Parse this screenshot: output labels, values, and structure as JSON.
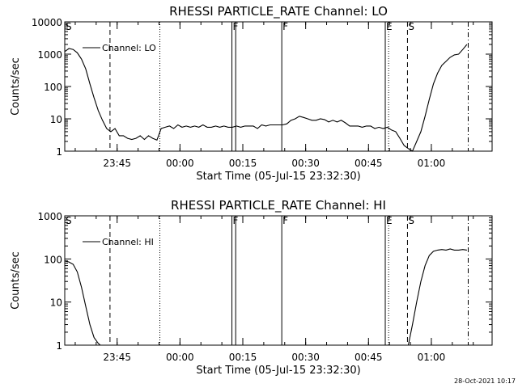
{
  "footer_timestamp": "28-Oct-2021 10:17",
  "chart_data": [
    {
      "type": "line",
      "title": "RHESSI PARTICLE_RATE Channel: LO",
      "xlabel": "Start Time (05-Jul-15 23:32:30)",
      "ylabel": "Counts/sec",
      "yscale": "log",
      "ylim": [
        1,
        10000
      ],
      "y_tick_labels": [
        "1",
        "10",
        "100",
        "1000",
        "10000"
      ],
      "xlim_minutes_after_start": [
        0,
        102
      ],
      "x_ticks": [
        {
          "label": "23:45",
          "t": 12.5
        },
        {
          "label": "00:00",
          "t": 27.5
        },
        {
          "label": "00:15",
          "t": 42.5
        },
        {
          "label": "00:30",
          "t": 57.5
        },
        {
          "label": "00:45",
          "t": 72.5
        },
        {
          "label": "01:00",
          "t": 87.5
        }
      ],
      "legend": {
        "label": "Channel: LO",
        "placement": "top-left"
      },
      "grid": false,
      "series": [
        {
          "name": "Channel: LO",
          "t": [
            0,
            1,
            2,
            3,
            4,
            5,
            6,
            7,
            8,
            9,
            10,
            11,
            12,
            13,
            14,
            15,
            16,
            17,
            18,
            19,
            20,
            21,
            22,
            23,
            24,
            25,
            26,
            27,
            28,
            29,
            30,
            31,
            32,
            33,
            34,
            35,
            36,
            37,
            38,
            39,
            40,
            41,
            42,
            43,
            44,
            45,
            46,
            47,
            48,
            49,
            50,
            51,
            52,
            53,
            54,
            55,
            56,
            57,
            58,
            59,
            60,
            61,
            62,
            63,
            64,
            65,
            66,
            67,
            68,
            69,
            70,
            71,
            72,
            73,
            74,
            75,
            76,
            77,
            78,
            79,
            80,
            81,
            82,
            83,
            84,
            85,
            86,
            87,
            88,
            89,
            90,
            91,
            92,
            93,
            94,
            95,
            96
          ],
          "y": [
            1200,
            1500,
            1400,
            1100,
            700,
            350,
            120,
            45,
            18,
            9,
            5,
            4,
            5,
            3,
            3,
            2.5,
            2.3,
            2.5,
            3,
            2.3,
            3,
            2.5,
            2.2,
            5,
            5.5,
            6,
            5,
            6.5,
            5.5,
            6,
            5.5,
            6,
            5.5,
            6.5,
            5.5,
            5.5,
            6,
            5.5,
            6,
            5.5,
            5.5,
            6,
            5.5,
            6,
            6,
            6,
            5,
            6.5,
            6,
            6.5,
            6.5,
            6.5,
            6.5,
            7,
            9,
            10,
            12,
            11,
            10,
            9,
            9,
            10,
            9.5,
            8,
            9,
            8,
            9,
            7.5,
            6,
            6,
            6,
            5.5,
            6,
            6,
            5,
            5.5,
            5,
            5.5,
            4.5,
            4,
            2.5,
            1.5,
            1.2,
            1,
            2,
            4,
            12,
            40,
            120,
            260,
            450,
            600,
            800,
            950,
            1000,
            1400,
            2000
          ]
        }
      ],
      "markers": [
        {
          "text": "S",
          "t": 0,
          "line": "none"
        },
        {
          "t": 10.8,
          "line": "dashed"
        },
        {
          "t": 22.7,
          "line": "dotted"
        },
        {
          "text": "F",
          "t": 39.9,
          "line": "solid"
        },
        {
          "t": 40.8,
          "line": "solid"
        },
        {
          "text": "F",
          "t": 51.8,
          "line": "solid"
        },
        {
          "text": "E",
          "t": 76.5,
          "line": "solid"
        },
        {
          "t": 77.3,
          "line": "dotted"
        },
        {
          "text": "S",
          "t": 81.8,
          "line": "dashed"
        },
        {
          "t": 96.3,
          "line": "dashdot"
        }
      ]
    },
    {
      "type": "line",
      "title": "RHESSI PARTICLE_RATE Channel: HI",
      "xlabel": "Start Time (05-Jul-15 23:32:30)",
      "ylabel": "Counts/sec",
      "yscale": "log",
      "ylim": [
        1,
        1000
      ],
      "y_tick_labels": [
        "1",
        "10",
        "100",
        "1000"
      ],
      "xlim_minutes_after_start": [
        0,
        102
      ],
      "x_ticks": [
        {
          "label": "23:45",
          "t": 12.5
        },
        {
          "label": "00:00",
          "t": 27.5
        },
        {
          "label": "00:15",
          "t": 42.5
        },
        {
          "label": "00:30",
          "t": 57.5
        },
        {
          "label": "00:45",
          "t": 72.5
        },
        {
          "label": "01:00",
          "t": 87.5
        }
      ],
      "legend": {
        "label": "Channel: HI",
        "placement": "top-left"
      },
      "grid": false,
      "series": [
        {
          "name": "Channel: HI",
          "t": [
            0,
            1,
            2,
            3,
            4,
            5,
            6,
            7,
            8,
            8.5,
            82,
            83,
            84,
            85,
            86,
            87,
            88,
            89,
            90,
            91,
            92,
            93,
            94,
            95,
            96
          ],
          "y": [
            90,
            85,
            75,
            50,
            22,
            8,
            3,
            1.5,
            1.1,
            1,
            1,
            3,
            10,
            30,
            70,
            120,
            150,
            160,
            165,
            160,
            170,
            160,
            160,
            165,
            160
          ]
        }
      ],
      "markers": [
        {
          "text": "S",
          "t": 0,
          "line": "none"
        },
        {
          "t": 10.8,
          "line": "dashed"
        },
        {
          "t": 22.7,
          "line": "dotted"
        },
        {
          "text": "F",
          "t": 39.9,
          "line": "solid"
        },
        {
          "t": 40.8,
          "line": "solid"
        },
        {
          "text": "F",
          "t": 51.8,
          "line": "solid"
        },
        {
          "text": "E",
          "t": 76.5,
          "line": "solid"
        },
        {
          "t": 77.3,
          "line": "dotted"
        },
        {
          "text": "S",
          "t": 81.8,
          "line": "dashed"
        },
        {
          "t": 96.3,
          "line": "dashdot"
        }
      ]
    }
  ]
}
